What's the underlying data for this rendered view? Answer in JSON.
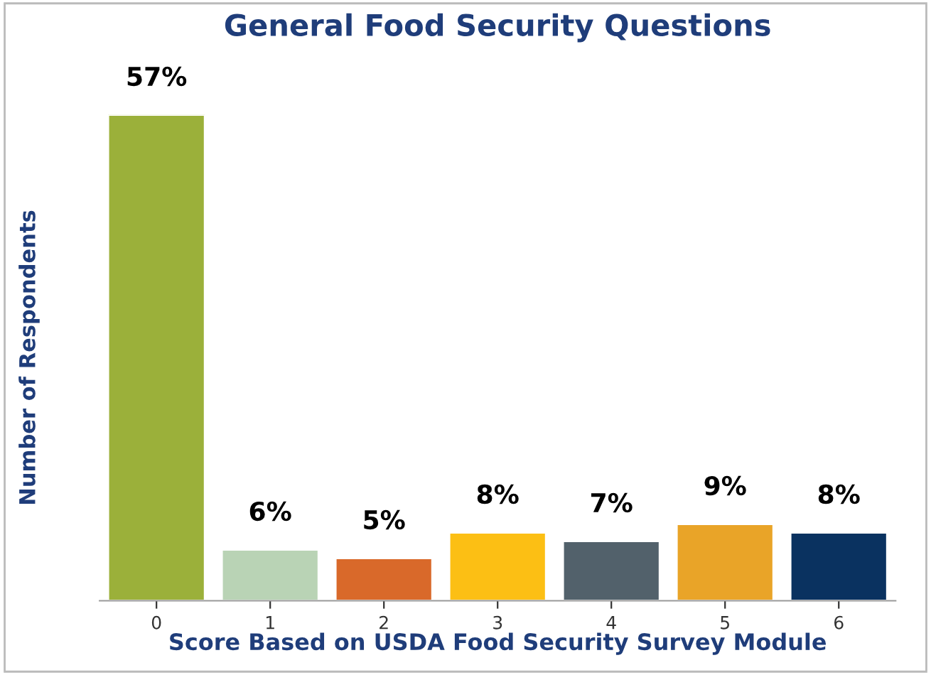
{
  "chart_data": {
    "type": "bar",
    "title": "General Food Security Questions",
    "xlabel": "Score Based on USDA Food Security Survey Module",
    "ylabel": "Number of Respondents",
    "categories": [
      "0",
      "1",
      "2",
      "3",
      "4",
      "5",
      "6"
    ],
    "values": [
      57,
      6,
      5,
      8,
      7,
      9,
      8
    ],
    "value_labels": [
      "57%",
      "6%",
      "5%",
      "8%",
      "7%",
      "9%",
      "8%"
    ],
    "colors": [
      "#9bb03a",
      "#b9d3b5",
      "#d9692a",
      "#fcbf14",
      "#52616b",
      "#e9a428",
      "#0a3260"
    ],
    "grid": false,
    "legend": false
  }
}
